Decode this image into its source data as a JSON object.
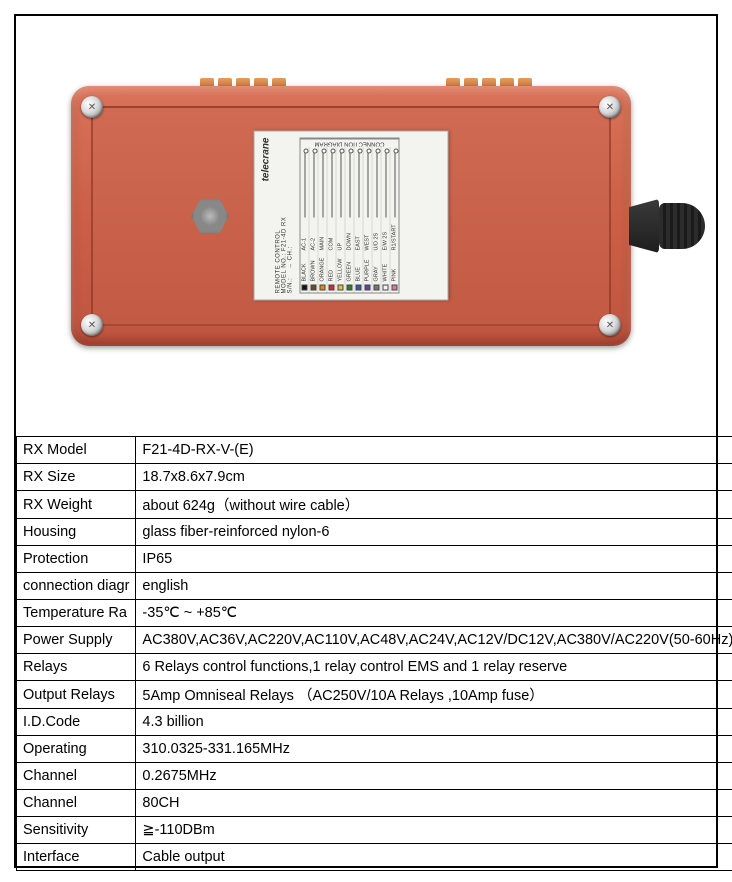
{
  "device": {
    "brand": "telecrane",
    "header1": "REMOTE CONTROL",
    "header2_k": "MODEL NO.:",
    "header2_v": "F21-4D RX",
    "header3_k": "S/N.:",
    "header4_k": "→ CH.:",
    "diagram_title": "CONNECTION DIAGRAM",
    "rows": [
      {
        "swatch": "#111111",
        "t1": "BLACK",
        "t2": "AC-1"
      },
      {
        "swatch": "#6b4a2a",
        "t1": "BROWN",
        "t2": "AC-2"
      },
      {
        "swatch": "#d98a1f",
        "t1": "ORANGE",
        "t2": "MAIN"
      },
      {
        "swatch": "#c93030",
        "t1": "RED",
        "t2": "COM"
      },
      {
        "swatch": "#e3c23b",
        "t1": "YELLOW",
        "t2": "UP"
      },
      {
        "swatch": "#2f7d32",
        "t1": "GREEN",
        "t2": "DOWN"
      },
      {
        "swatch": "#2e5db0",
        "t1": "BLUE",
        "t2": "EAST"
      },
      {
        "swatch": "#6a3fa0",
        "t1": "PURPLE",
        "t2": "WEST"
      },
      {
        "swatch": "#777777",
        "t1": "GRAY",
        "t2": "U/D 2S"
      },
      {
        "swatch": "#f2f2f2",
        "t1": "WHITE",
        "t2": "E/W 2S"
      },
      {
        "swatch": "#d97aa6",
        "t1": "PINK",
        "t2": "R1/START"
      }
    ]
  },
  "specs": [
    {
      "k": "RX Model",
      "v": "F21-4D-RX-V-(E)"
    },
    {
      "k": "RX Size",
      "v": "18.7x8.6x7.9cm"
    },
    {
      "k": "RX Weight",
      "v": "about 624g（without  wire  cable）"
    },
    {
      "k": "Housing",
      "v": "glass fiber-reinforced nylon-6"
    },
    {
      "k": "Protection",
      "v": "IP65"
    },
    {
      "k": "connection diagr",
      "v": "english"
    },
    {
      "k": "Temperature Ra",
      "v": "-35℃ ~ +85℃"
    },
    {
      "k": "Power Supply",
      "v": "AC380V,AC36V,AC220V,AC110V,AC48V,AC24V,AC12V/DC12V,AC380V/AC220V(50-60Hz)"
    },
    {
      "k": "Relays",
      "v": "6 Relays control functions,1 relay control EMS and 1 relay reserve"
    },
    {
      "k": "Output Relays",
      "v": "5Amp Omniseal Relays （AC250V/10A Relays ,10Amp fuse）"
    },
    {
      "k": "I.D.Code",
      "v": "4.3 billion"
    },
    {
      "k": "Operating",
      "v": "310.0325-331.165MHz"
    },
    {
      "k": "Channel",
      "v": "0.2675MHz"
    },
    {
      "k": "Channel",
      "v": "80CH"
    },
    {
      "k": "Sensitivity",
      "v": "≧-110DBm"
    },
    {
      "k": "Interface",
      "v": "Cable output"
    }
  ],
  "colors": {
    "device_body": "#cb5f47",
    "border": "#000000",
    "label_bg": "#f3f3ef"
  }
}
